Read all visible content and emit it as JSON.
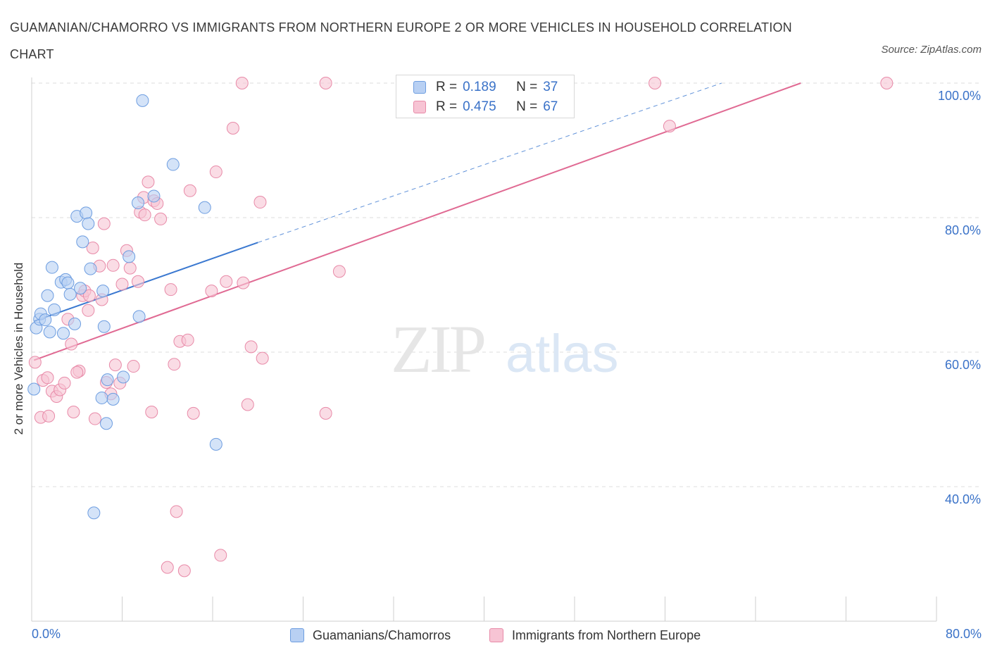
{
  "title": "GUAMANIAN/CHAMORRO VS IMMIGRANTS FROM NORTHERN EUROPE 2 OR MORE VEHICLES IN HOUSEHOLD CORRELATION CHART",
  "source": "Source: ZipAtlas.com",
  "colors": {
    "blue_fill": "#b8d0f3",
    "blue_stroke": "#6d9de0",
    "blue_line": "#3a78d0",
    "pink_fill": "#f7c4d4",
    "pink_stroke": "#e88aa8",
    "pink_line": "#e06a93",
    "axis_label": "#3a72c8",
    "grid": "#dddddd"
  },
  "legend_top": {
    "rows": [
      {
        "r_label": "R =",
        "r_value": "0.189",
        "n_label": "N =",
        "n_value": "37"
      },
      {
        "r_label": "R =",
        "r_value": "0.475",
        "n_label": "N =",
        "n_value": "67"
      }
    ]
  },
  "watermark": {
    "zip": "ZIP",
    "atlas": "atlas"
  },
  "chart_data": {
    "type": "scatter",
    "title": "GUAMANIAN/CHAMORRO VS IMMIGRANTS FROM NORTHERN EUROPE 2 OR MORE VEHICLES IN HOUSEHOLD CORRELATION CHART",
    "xlabel": "",
    "ylabel": "2 or more Vehicles in Household",
    "xlim": [
      0,
      80
    ],
    "ylim": [
      20,
      100
    ],
    "x_tick_labels": [
      "0.0%",
      "80.0%"
    ],
    "y_ticks": [
      40,
      60,
      80,
      100
    ],
    "y_tick_labels": [
      "40.0%",
      "60.0%",
      "80.0%",
      "100.0%"
    ],
    "grid": true,
    "legend_position": "bottom",
    "series": [
      {
        "name": "Guamanians/Chamorros",
        "R": 0.189,
        "N": 37,
        "trend": {
          "x_start": 0.2,
          "y_start": 64.6,
          "x_solid_end": 20.0,
          "y_solid_end": 76.3,
          "x_dash_end": 61.0,
          "y_dash_end": 100.0
        },
        "points": [
          [
            0.2,
            54.5
          ],
          [
            0.4,
            63.6
          ],
          [
            0.7,
            64.9
          ],
          [
            0.8,
            65.7
          ],
          [
            1.2,
            64.8
          ],
          [
            1.4,
            68.4
          ],
          [
            1.6,
            63.0
          ],
          [
            1.8,
            72.6
          ],
          [
            2.0,
            66.3
          ],
          [
            2.6,
            70.4
          ],
          [
            2.8,
            62.8
          ],
          [
            3.0,
            70.8
          ],
          [
            3.2,
            70.3
          ],
          [
            3.4,
            68.6
          ],
          [
            3.8,
            64.2
          ],
          [
            4.0,
            80.2
          ],
          [
            4.3,
            69.5
          ],
          [
            4.5,
            76.4
          ],
          [
            4.8,
            80.7
          ],
          [
            5.0,
            79.1
          ],
          [
            5.2,
            72.4
          ],
          [
            6.2,
            53.2
          ],
          [
            6.3,
            69.1
          ],
          [
            6.4,
            63.8
          ],
          [
            6.7,
            55.9
          ],
          [
            6.6,
            49.4
          ],
          [
            7.2,
            53.0
          ],
          [
            8.1,
            56.3
          ],
          [
            8.6,
            74.2
          ],
          [
            9.4,
            82.2
          ],
          [
            9.5,
            65.3
          ],
          [
            9.8,
            97.4
          ],
          [
            10.8,
            83.2
          ],
          [
            12.5,
            87.9
          ],
          [
            15.3,
            81.5
          ],
          [
            16.3,
            46.3
          ],
          [
            5.5,
            36.1
          ]
        ]
      },
      {
        "name": "Immigrants from Northern Europe",
        "R": 0.475,
        "N": 67,
        "trend": {
          "x_start": 0.2,
          "y_start": 58.8,
          "x_end": 68.0,
          "y_end": 100.0
        },
        "points": [
          [
            0.3,
            58.5
          ],
          [
            0.8,
            50.3
          ],
          [
            1.0,
            55.8
          ],
          [
            1.4,
            56.2
          ],
          [
            1.5,
            50.5
          ],
          [
            1.8,
            54.2
          ],
          [
            2.2,
            53.4
          ],
          [
            2.5,
            54.4
          ],
          [
            2.9,
            55.4
          ],
          [
            3.2,
            64.9
          ],
          [
            3.5,
            61.2
          ],
          [
            3.7,
            51.1
          ],
          [
            4.2,
            57.2
          ],
          [
            4.5,
            68.4
          ],
          [
            4.7,
            69.1
          ],
          [
            5.0,
            66.2
          ],
          [
            5.1,
            68.4
          ],
          [
            5.4,
            75.5
          ],
          [
            5.6,
            50.1
          ],
          [
            6.0,
            72.8
          ],
          [
            6.2,
            67.8
          ],
          [
            6.4,
            79.1
          ],
          [
            6.6,
            55.5
          ],
          [
            7.0,
            53.8
          ],
          [
            7.2,
            72.9
          ],
          [
            7.4,
            58.1
          ],
          [
            7.8,
            55.4
          ],
          [
            8.0,
            70.1
          ],
          [
            8.4,
            75.1
          ],
          [
            8.7,
            72.5
          ],
          [
            9.0,
            57.9
          ],
          [
            9.4,
            70.5
          ],
          [
            9.6,
            80.8
          ],
          [
            9.9,
            83.0
          ],
          [
            10.0,
            80.4
          ],
          [
            10.3,
            85.3
          ],
          [
            10.6,
            51.1
          ],
          [
            10.8,
            82.5
          ],
          [
            11.1,
            82.1
          ],
          [
            11.4,
            79.8
          ],
          [
            12.3,
            69.3
          ],
          [
            12.6,
            58.2
          ],
          [
            12.8,
            36.3
          ],
          [
            13.1,
            61.6
          ],
          [
            13.8,
            61.8
          ],
          [
            14.0,
            84.0
          ],
          [
            14.3,
            50.9
          ],
          [
            15.9,
            69.1
          ],
          [
            16.3,
            86.8
          ],
          [
            16.7,
            29.8
          ],
          [
            17.2,
            70.5
          ],
          [
            17.8,
            93.3
          ],
          [
            18.6,
            100.0
          ],
          [
            18.7,
            70.3
          ],
          [
            19.1,
            52.2
          ],
          [
            19.4,
            60.8
          ],
          [
            20.2,
            82.3
          ],
          [
            20.4,
            59.1
          ],
          [
            26.0,
            100.0
          ],
          [
            26.0,
            50.9
          ],
          [
            27.2,
            72.0
          ],
          [
            55.1,
            100.0
          ],
          [
            56.4,
            93.6
          ],
          [
            75.6,
            100.0
          ],
          [
            12.0,
            28.0
          ],
          [
            13.5,
            27.5
          ],
          [
            4.0,
            57.0
          ]
        ]
      }
    ]
  },
  "legend_bottom": {
    "items": [
      {
        "label": "Guamanians/Chamorros"
      },
      {
        "label": "Immigrants from Northern Europe"
      }
    ]
  }
}
